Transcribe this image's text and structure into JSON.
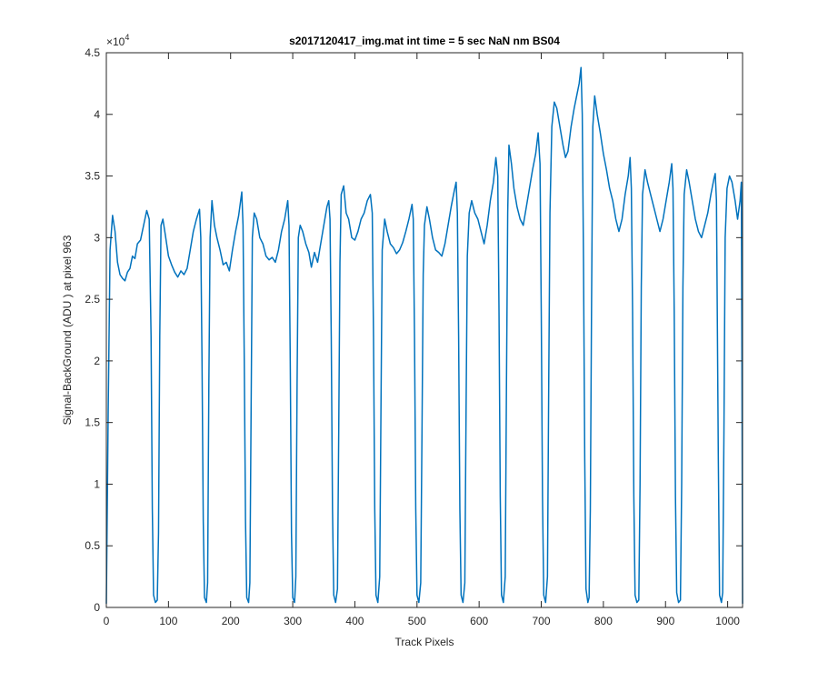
{
  "chart_data": {
    "type": "line",
    "title": "s2017120417_img.mat int time = 5 sec  NaN nm BS04",
    "xlabel": "Track Pixels",
    "ylabel": "Signal-BackGround (ADU ) at pixel 963",
    "xlim": [
      0,
      1024
    ],
    "ylim": [
      0,
      45000
    ],
    "x_ticks": [
      "0",
      "100",
      "200",
      "300",
      "400",
      "500",
      "600",
      "700",
      "800",
      "900",
      "1000"
    ],
    "y_ticks": [
      "0",
      "0.5",
      "1",
      "1.5",
      "2",
      "2.5",
      "3",
      "3.5",
      "4",
      "4.5"
    ],
    "y_exponent": {
      "base": "×10",
      "power": "4"
    },
    "grid": false,
    "line_color": "#0072BD",
    "series": [
      {
        "name": "",
        "points": [
          [
            0,
            300
          ],
          [
            3,
            16000
          ],
          [
            6,
            29000
          ],
          [
            10,
            31800
          ],
          [
            14,
            30500
          ],
          [
            18,
            28000
          ],
          [
            22,
            27000
          ],
          [
            26,
            26700
          ],
          [
            30,
            26500
          ],
          [
            34,
            27200
          ],
          [
            38,
            27500
          ],
          [
            42,
            28500
          ],
          [
            46,
            28300
          ],
          [
            50,
            29500
          ],
          [
            55,
            29800
          ],
          [
            60,
            31000
          ],
          [
            65,
            32200
          ],
          [
            69,
            31500
          ],
          [
            72,
            22000
          ],
          [
            74,
            8000
          ],
          [
            76,
            1000
          ],
          [
            79,
            400
          ],
          [
            82,
            600
          ],
          [
            84,
            6000
          ],
          [
            86,
            22000
          ],
          [
            88,
            31000
          ],
          [
            91,
            31500
          ],
          [
            95,
            30200
          ],
          [
            100,
            28500
          ],
          [
            105,
            27800
          ],
          [
            110,
            27200
          ],
          [
            115,
            26800
          ],
          [
            120,
            27300
          ],
          [
            125,
            27000
          ],
          [
            130,
            27500
          ],
          [
            135,
            29000
          ],
          [
            140,
            30500
          ],
          [
            145,
            31500
          ],
          [
            150,
            32300
          ],
          [
            152,
            30000
          ],
          [
            154,
            20000
          ],
          [
            156,
            7000
          ],
          [
            158,
            800
          ],
          [
            161,
            400
          ],
          [
            163,
            2000
          ],
          [
            165,
            18000
          ],
          [
            167,
            30000
          ],
          [
            170,
            33000
          ],
          [
            174,
            31000
          ],
          [
            178,
            30000
          ],
          [
            183,
            29000
          ],
          [
            188,
            27800
          ],
          [
            193,
            28000
          ],
          [
            198,
            27300
          ],
          [
            203,
            29000
          ],
          [
            208,
            30500
          ],
          [
            213,
            31800
          ],
          [
            218,
            33700
          ],
          [
            220,
            31000
          ],
          [
            222,
            20000
          ],
          [
            224,
            7000
          ],
          [
            226,
            800
          ],
          [
            229,
            400
          ],
          [
            231,
            2000
          ],
          [
            233,
            16000
          ],
          [
            235,
            30000
          ],
          [
            238,
            32000
          ],
          [
            242,
            31500
          ],
          [
            247,
            30000
          ],
          [
            252,
            29500
          ],
          [
            257,
            28500
          ],
          [
            262,
            28200
          ],
          [
            267,
            28400
          ],
          [
            272,
            28000
          ],
          [
            277,
            29000
          ],
          [
            282,
            30500
          ],
          [
            287,
            31500
          ],
          [
            292,
            33000
          ],
          [
            294,
            31000
          ],
          [
            296,
            20000
          ],
          [
            298,
            6000
          ],
          [
            300,
            800
          ],
          [
            303,
            400
          ],
          [
            305,
            2500
          ],
          [
            307,
            18000
          ],
          [
            309,
            30000
          ],
          [
            312,
            31000
          ],
          [
            316,
            30500
          ],
          [
            321,
            29500
          ],
          [
            326,
            28800
          ],
          [
            330,
            27600
          ],
          [
            335,
            28800
          ],
          [
            340,
            28000
          ],
          [
            345,
            29500
          ],
          [
            350,
            31000
          ],
          [
            355,
            32500
          ],
          [
            358,
            33000
          ],
          [
            360,
            31500
          ],
          [
            362,
            22000
          ],
          [
            364,
            8000
          ],
          [
            366,
            1000
          ],
          [
            369,
            400
          ],
          [
            372,
            1500
          ],
          [
            374,
            14000
          ],
          [
            376,
            28000
          ],
          [
            378,
            33500
          ],
          [
            382,
            34200
          ],
          [
            386,
            32000
          ],
          [
            390,
            31500
          ],
          [
            395,
            30000
          ],
          [
            400,
            29800
          ],
          [
            405,
            30500
          ],
          [
            410,
            31500
          ],
          [
            415,
            32000
          ],
          [
            420,
            33000
          ],
          [
            425,
            33500
          ],
          [
            428,
            32000
          ],
          [
            430,
            22000
          ],
          [
            432,
            8000
          ],
          [
            434,
            1000
          ],
          [
            437,
            400
          ],
          [
            440,
            2500
          ],
          [
            442,
            16000
          ],
          [
            444,
            29000
          ],
          [
            448,
            31500
          ],
          [
            452,
            30500
          ],
          [
            457,
            29500
          ],
          [
            462,
            29200
          ],
          [
            467,
            28700
          ],
          [
            472,
            29000
          ],
          [
            477,
            29600
          ],
          [
            482,
            30500
          ],
          [
            487,
            31500
          ],
          [
            492,
            32700
          ],
          [
            494,
            31500
          ],
          [
            496,
            22000
          ],
          [
            498,
            8000
          ],
          [
            500,
            1000
          ],
          [
            503,
            400
          ],
          [
            506,
            2000
          ],
          [
            508,
            14000
          ],
          [
            510,
            27000
          ],
          [
            512,
            31000
          ],
          [
            516,
            32500
          ],
          [
            520,
            31500
          ],
          [
            525,
            30000
          ],
          [
            530,
            29000
          ],
          [
            535,
            28800
          ],
          [
            540,
            28500
          ],
          [
            545,
            29500
          ],
          [
            550,
            31000
          ],
          [
            555,
            32500
          ],
          [
            560,
            33800
          ],
          [
            563,
            34500
          ],
          [
            565,
            32000
          ],
          [
            567,
            22000
          ],
          [
            569,
            8000
          ],
          [
            571,
            1000
          ],
          [
            574,
            400
          ],
          [
            577,
            2000
          ],
          [
            579,
            16000
          ],
          [
            581,
            28500
          ],
          [
            584,
            32000
          ],
          [
            588,
            33000
          ],
          [
            593,
            32000
          ],
          [
            598,
            31500
          ],
          [
            603,
            30500
          ],
          [
            608,
            29500
          ],
          [
            613,
            31000
          ],
          [
            618,
            33000
          ],
          [
            623,
            34500
          ],
          [
            627,
            36500
          ],
          [
            630,
            35000
          ],
          [
            632,
            24000
          ],
          [
            634,
            9000
          ],
          [
            636,
            1000
          ],
          [
            639,
            400
          ],
          [
            642,
            2500
          ],
          [
            644,
            18000
          ],
          [
            646,
            32000
          ],
          [
            648,
            37500
          ],
          [
            652,
            36000
          ],
          [
            656,
            34000
          ],
          [
            661,
            32500
          ],
          [
            666,
            31500
          ],
          [
            671,
            31000
          ],
          [
            676,
            32500
          ],
          [
            681,
            34000
          ],
          [
            686,
            35500
          ],
          [
            691,
            36800
          ],
          [
            695,
            38500
          ],
          [
            698,
            36000
          ],
          [
            700,
            24000
          ],
          [
            702,
            9000
          ],
          [
            704,
            1000
          ],
          [
            707,
            400
          ],
          [
            710,
            2500
          ],
          [
            712,
            18000
          ],
          [
            714,
            32000
          ],
          [
            717,
            39000
          ],
          [
            721,
            41000
          ],
          [
            725,
            40500
          ],
          [
            730,
            39000
          ],
          [
            735,
            37500
          ],
          [
            739,
            36500
          ],
          [
            743,
            37000
          ],
          [
            748,
            39000
          ],
          [
            753,
            40500
          ],
          [
            757,
            41500
          ],
          [
            761,
            42500
          ],
          [
            764,
            43800
          ],
          [
            766,
            40000
          ],
          [
            768,
            28000
          ],
          [
            770,
            12000
          ],
          [
            772,
            1500
          ],
          [
            775,
            400
          ],
          [
            777,
            800
          ],
          [
            779,
            8000
          ],
          [
            781,
            25000
          ],
          [
            783,
            39000
          ],
          [
            786,
            41500
          ],
          [
            790,
            40000
          ],
          [
            795,
            38500
          ],
          [
            800,
            36800
          ],
          [
            805,
            35500
          ],
          [
            810,
            34000
          ],
          [
            815,
            33000
          ],
          [
            820,
            31500
          ],
          [
            825,
            30500
          ],
          [
            830,
            31500
          ],
          [
            835,
            33500
          ],
          [
            840,
            35000
          ],
          [
            843,
            36500
          ],
          [
            845,
            34000
          ],
          [
            847,
            24000
          ],
          [
            849,
            9000
          ],
          [
            851,
            1000
          ],
          [
            854,
            400
          ],
          [
            857,
            600
          ],
          [
            859,
            10000
          ],
          [
            861,
            26000
          ],
          [
            863,
            33500
          ],
          [
            867,
            35500
          ],
          [
            871,
            34500
          ],
          [
            876,
            33500
          ],
          [
            881,
            32500
          ],
          [
            886,
            31500
          ],
          [
            891,
            30500
          ],
          [
            896,
            31500
          ],
          [
            901,
            33000
          ],
          [
            906,
            34500
          ],
          [
            910,
            36000
          ],
          [
            912,
            34000
          ],
          [
            914,
            24000
          ],
          [
            916,
            9000
          ],
          [
            918,
            1200
          ],
          [
            921,
            400
          ],
          [
            924,
            600
          ],
          [
            926,
            10000
          ],
          [
            928,
            26000
          ],
          [
            930,
            33500
          ],
          [
            934,
            35500
          ],
          [
            938,
            34500
          ],
          [
            943,
            33000
          ],
          [
            948,
            31500
          ],
          [
            953,
            30500
          ],
          [
            958,
            30000
          ],
          [
            963,
            31000
          ],
          [
            968,
            32000
          ],
          [
            973,
            33500
          ],
          [
            978,
            34800
          ],
          [
            980,
            35200
          ],
          [
            982,
            33000
          ],
          [
            985,
            12000
          ],
          [
            987,
            1000
          ],
          [
            990,
            400
          ],
          [
            992,
            1200
          ],
          [
            994,
            14000
          ],
          [
            996,
            30000
          ],
          [
            999,
            34000
          ],
          [
            1003,
            35000
          ],
          [
            1007,
            34500
          ],
          [
            1012,
            33000
          ],
          [
            1016,
            31500
          ],
          [
            1020,
            33000
          ],
          [
            1022,
            34500
          ],
          [
            1023,
            20000
          ],
          [
            1024,
            300
          ]
        ]
      }
    ]
  }
}
